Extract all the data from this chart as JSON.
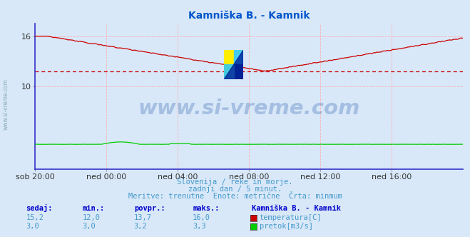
{
  "title": "Kamniška B. - Kamnik",
  "title_color": "#0055cc",
  "bg_color": "#d8e8f8",
  "plot_bg_color": "#d8e8f8",
  "grid_color": "#ffaaaa",
  "x_labels": [
    "sob 20:00",
    "ned 00:00",
    "ned 04:00",
    "ned 08:00",
    "ned 12:00",
    "ned 16:00"
  ],
  "x_ticks_pos": [
    0,
    48,
    96,
    144,
    192,
    240
  ],
  "total_points": 289,
  "ylim": [
    0,
    17.5
  ],
  "y_ticks": [
    10,
    16
  ],
  "temp_color": "#cc0000",
  "flow_color": "#00cc00",
  "avg_line_color": "#cc0000",
  "avg_value": 11.8,
  "watermark": "www.si-vreme.com",
  "watermark_color": "#2255aa",
  "subtitle1": "Slovenija / reke in morje.",
  "subtitle2": "zadnji dan / 5 minut.",
  "subtitle3": "Meritve: trenutne  Enote: metrične  Črta: minmum",
  "subtitle_color": "#4499cc",
  "label_color": "#0000cc",
  "side_text": "www.si-vreme.com",
  "side_color": "#88aabb",
  "spine_color": "#3333cc",
  "arrow_color": "#cc0000"
}
